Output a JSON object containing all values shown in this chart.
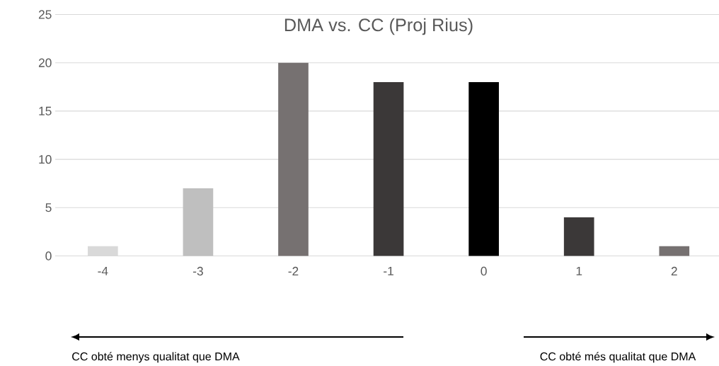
{
  "chart_data": {
    "type": "bar",
    "title": "DMA vs. CC (Proj Rius)",
    "categories": [
      "-4",
      "-3",
      "-2",
      "-1",
      "0",
      "1",
      "2"
    ],
    "values": [
      1,
      7,
      20,
      18,
      18,
      4,
      1
    ],
    "colors": [
      "#d9d9d9",
      "#bfbfbf",
      "#767171",
      "#3b3838",
      "#000000",
      "#3b3838",
      "#767171"
    ],
    "ylim": [
      0,
      25
    ],
    "yticks": [
      0,
      5,
      10,
      15,
      20,
      25
    ],
    "grid": "y",
    "annotations": [
      "CC obté menys qualitat que DMA",
      "CC obté més qualitat que DMA"
    ]
  }
}
